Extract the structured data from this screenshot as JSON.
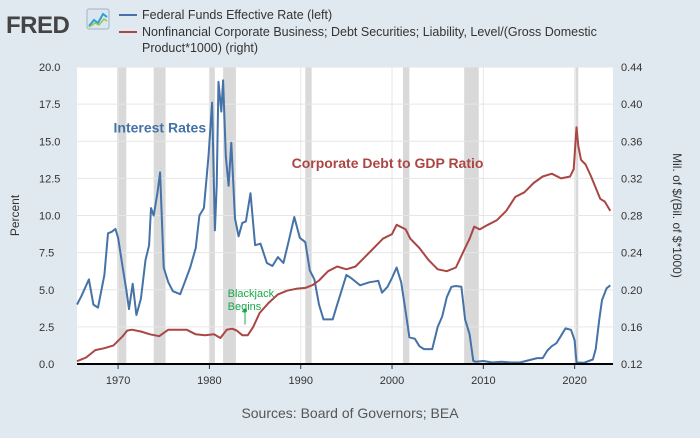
{
  "header": {
    "logo_text": "FRED",
    "logo_icon": "line-chart-icon"
  },
  "legend": [
    {
      "label": "Federal Funds Effective Rate (left)",
      "color": "#4572a7"
    },
    {
      "label_lines": [
        "Nonfinancial Corporate Business; Debt Securities; Liability, Level/(Gross Domestic",
        "Product*1000) (right)"
      ],
      "color": "#aa4643"
    }
  ],
  "source_text": "Sources: Board of Governors; BEA",
  "colors": {
    "background": "#e1e9f0",
    "plot": "#ffffff",
    "recession": "#d9d9d9",
    "fed_funds": "#4572a7",
    "corporate_debt": "#aa4643",
    "annotation_green": "#19a94a"
  },
  "chart_data": {
    "type": "line",
    "grid": true,
    "legend_position": "top",
    "x_axis": {
      "range": [
        1965.5,
        2024.2
      ],
      "ticks": [
        1970,
        1980,
        1990,
        2000,
        2010,
        2020
      ]
    },
    "y_left": {
      "label": "Percent",
      "range": [
        0,
        20
      ],
      "ticks": [
        "0.0",
        "2.5",
        "5.0",
        "7.5",
        "10.0",
        "12.5",
        "15.0",
        "17.5",
        "20.0"
      ]
    },
    "y_right": {
      "label": "Mil. of $/(Bil. of $*1000)",
      "range": [
        0.12,
        0.44
      ],
      "ticks": [
        "0.12",
        "0.16",
        "0.20",
        "0.24",
        "0.28",
        "0.32",
        "0.36",
        "0.40",
        "0.44"
      ]
    },
    "recessions": [
      [
        1969.9,
        1970.9
      ],
      [
        1973.9,
        1975.2
      ],
      [
        1980.0,
        1980.6
      ],
      [
        1981.5,
        1982.9
      ],
      [
        1990.5,
        1991.2
      ],
      [
        2001.2,
        2001.9
      ],
      [
        2007.9,
        2009.5
      ],
      [
        2020.1,
        2020.4
      ]
    ],
    "series": [
      {
        "name": "Federal Funds Effective Rate (left)",
        "axis": "left",
        "x": [
          1965.5,
          1966.0,
          1966.8,
          1967.3,
          1967.8,
          1968.5,
          1968.9,
          1969.3,
          1969.7,
          1970.0,
          1970.5,
          1970.9,
          1971.2,
          1971.6,
          1972.0,
          1972.5,
          1973.0,
          1973.4,
          1973.6,
          1973.9,
          1974.3,
          1974.6,
          1975.0,
          1975.5,
          1976.0,
          1976.8,
          1977.3,
          1977.9,
          1978.5,
          1978.9,
          1979.4,
          1979.9,
          1980.3,
          1980.6,
          1980.8,
          1981.0,
          1981.3,
          1981.5,
          1981.8,
          1982.1,
          1982.4,
          1982.8,
          1983.2,
          1983.6,
          1984.0,
          1984.5,
          1985.0,
          1985.6,
          1986.3,
          1986.9,
          1987.5,
          1988.1,
          1988.7,
          1989.3,
          1989.9,
          1990.5,
          1991.0,
          1991.5,
          1992.0,
          1992.5,
          1993.5,
          1994.0,
          1994.5,
          1995.0,
          1995.5,
          1996.5,
          1997.5,
          1998.5,
          1998.9,
          1999.5,
          2000.0,
          2000.5,
          2001.0,
          2001.5,
          2001.9,
          2002.5,
          2003.0,
          2003.5,
          2004.4,
          2005.0,
          2005.5,
          2006.0,
          2006.5,
          2007.0,
          2007.6,
          2008.0,
          2008.5,
          2008.9,
          2009.2,
          2010.0,
          2011.0,
          2012.0,
          2013.0,
          2014.0,
          2015.9,
          2016.5,
          2017.0,
          2017.5,
          2018.0,
          2018.5,
          2019.0,
          2019.6,
          2020.0,
          2020.2,
          2021.0,
          2022.0,
          2022.3,
          2022.7,
          2023.0,
          2023.5,
          2023.9
        ],
        "y": [
          4.0,
          4.6,
          5.7,
          4.0,
          3.8,
          6.0,
          8.8,
          8.9,
          9.1,
          8.5,
          6.5,
          5.0,
          3.7,
          5.4,
          3.3,
          4.4,
          7.0,
          8.0,
          10.5,
          10.0,
          11.5,
          12.9,
          6.5,
          5.5,
          4.9,
          4.7,
          5.5,
          6.5,
          7.8,
          10.0,
          10.5,
          14.0,
          17.6,
          9.0,
          12.0,
          19.0,
          17.0,
          19.1,
          14.0,
          12.0,
          14.9,
          9.8,
          8.6,
          9.5,
          9.6,
          11.5,
          8.0,
          8.1,
          6.8,
          6.6,
          7.2,
          6.8,
          8.3,
          9.9,
          8.5,
          8.2,
          6.3,
          5.7,
          4.0,
          3.0,
          3.0,
          4.0,
          5.0,
          6.0,
          5.8,
          5.3,
          5.5,
          5.6,
          4.8,
          5.2,
          5.8,
          6.5,
          5.5,
          3.5,
          1.8,
          1.7,
          1.2,
          1.0,
          1.0,
          2.5,
          3.2,
          4.5,
          5.2,
          5.25,
          5.2,
          3.0,
          2.0,
          0.2,
          0.15,
          0.2,
          0.1,
          0.15,
          0.1,
          0.1,
          0.4,
          0.4,
          0.9,
          1.2,
          1.4,
          1.9,
          2.4,
          2.3,
          1.6,
          0.1,
          0.08,
          0.3,
          1.0,
          3.0,
          4.3,
          5.1,
          5.3
        ]
      },
      {
        "name": "Nonfinancial Corporate Business; Debt Securities; Liability, Level/(Gross Domestic Product*1000) (right)",
        "axis": "right",
        "x": [
          1965.5,
          1966.5,
          1967.5,
          1968.5,
          1969.5,
          1970.5,
          1971.0,
          1971.5,
          1972.5,
          1973.5,
          1974.5,
          1975.5,
          1976.5,
          1977.5,
          1978.5,
          1979.5,
          1980.5,
          1981.2,
          1981.9,
          1982.5,
          1983.0,
          1983.6,
          1984.2,
          1984.8,
          1985.5,
          1986.5,
          1987.5,
          1988.5,
          1989.5,
          1990.5,
          1991.3,
          1992.0,
          1993.0,
          1994.0,
          1995.0,
          1996.0,
          1997.0,
          1998.0,
          1999.0,
          2000.0,
          2000.5,
          2001.5,
          2002.0,
          2003.0,
          2004.0,
          2005.0,
          2006.0,
          2007.0,
          2008.0,
          2008.5,
          2009.0,
          2009.6,
          2010.5,
          2011.5,
          2012.5,
          2013.5,
          2014.5,
          2015.5,
          2016.5,
          2017.5,
          2018.5,
          2019.5,
          2019.9,
          2020.2,
          2020.4,
          2020.7,
          2021.2,
          2021.8,
          2022.3,
          2022.8,
          2023.3,
          2023.9
        ],
        "y": [
          0.123,
          0.127,
          0.135,
          0.137,
          0.14,
          0.15,
          0.156,
          0.157,
          0.155,
          0.152,
          0.15,
          0.157,
          0.157,
          0.157,
          0.152,
          0.151,
          0.152,
          0.148,
          0.157,
          0.158,
          0.156,
          0.151,
          0.151,
          0.16,
          0.175,
          0.186,
          0.195,
          0.199,
          0.201,
          0.202,
          0.205,
          0.21,
          0.22,
          0.225,
          0.222,
          0.225,
          0.235,
          0.245,
          0.255,
          0.26,
          0.27,
          0.265,
          0.255,
          0.245,
          0.232,
          0.222,
          0.22,
          0.224,
          0.245,
          0.255,
          0.268,
          0.265,
          0.27,
          0.275,
          0.285,
          0.3,
          0.305,
          0.315,
          0.322,
          0.325,
          0.32,
          0.322,
          0.33,
          0.375,
          0.355,
          0.34,
          0.335,
          0.322,
          0.31,
          0.298,
          0.295,
          0.285
        ]
      }
    ],
    "annotations": [
      {
        "text": "Interest Rates",
        "color": "#4572a7",
        "x": 1969.5,
        "y_left": 15.6
      },
      {
        "text": "Corporate Debt to GDP Ratio",
        "color": "#aa4643",
        "x": 1989.0,
        "y_left": 13.2
      },
      {
        "text_lines": [
          "Blackjack",
          "Begins"
        ],
        "color": "#19a94a",
        "x": 1982.0,
        "y_left": 4.5,
        "marker": {
          "x": 1983.9,
          "y_left": 3.6
        }
      }
    ]
  }
}
